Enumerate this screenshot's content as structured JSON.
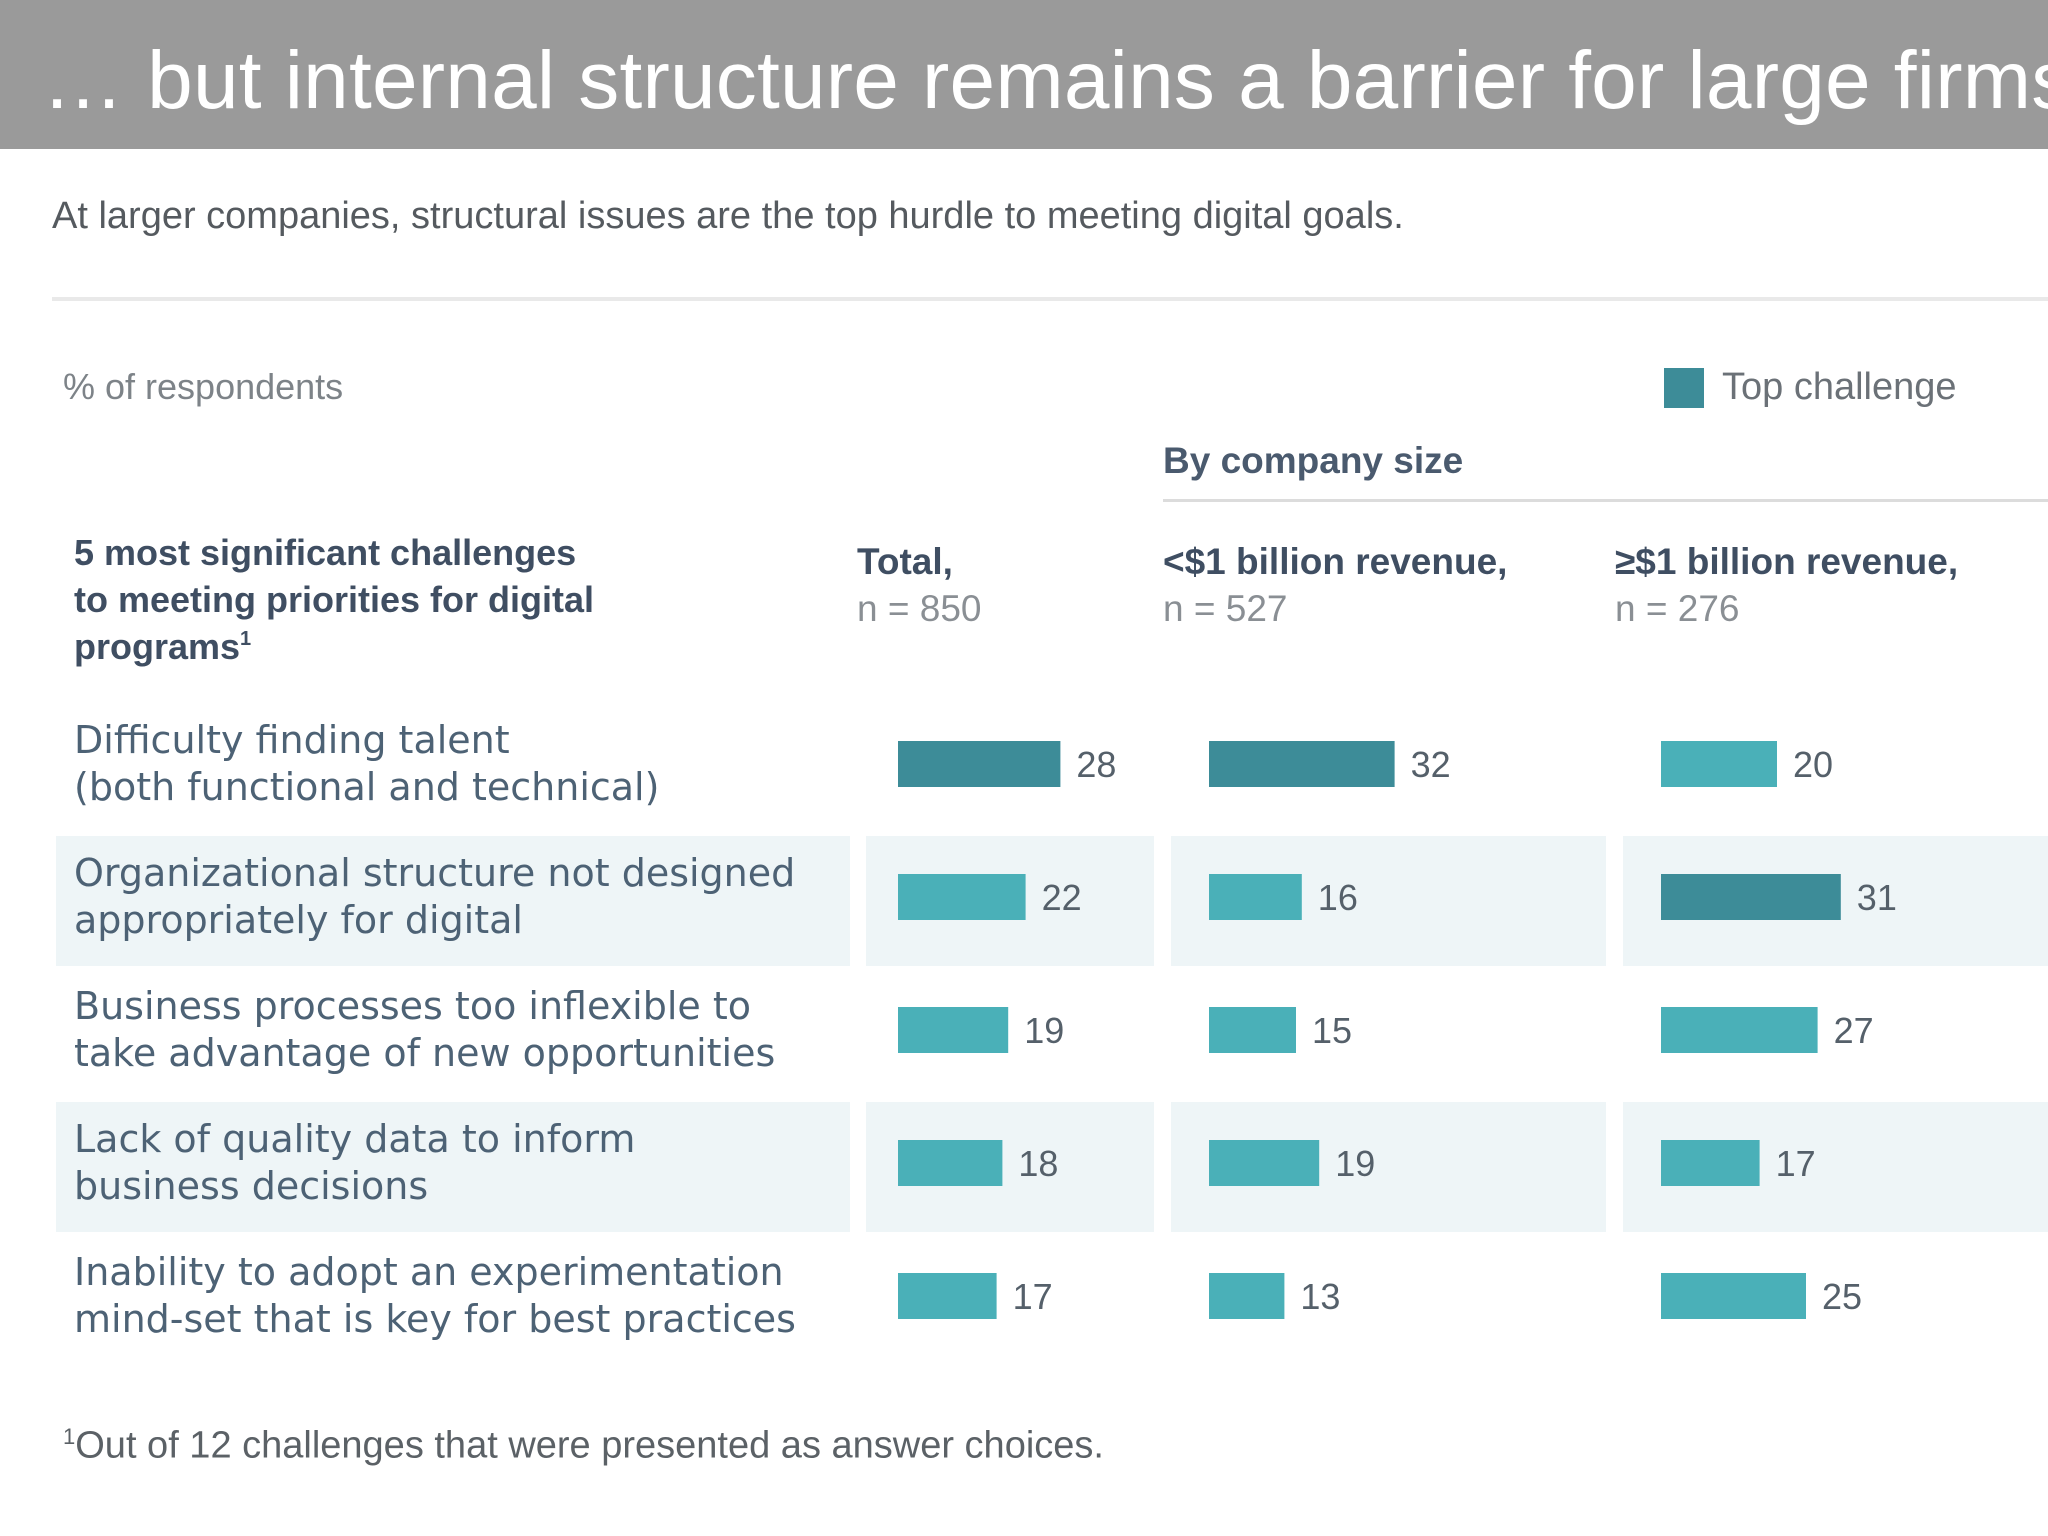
{
  "slide_title": "… but internal structure remains a barrier for large firms",
  "subtitle": "At larger companies, structural issues are the top hurdle to meeting digital goals.",
  "unit_label": "% of respondents",
  "legend": {
    "label": "Top challenge",
    "color": "#3d8c98"
  },
  "group_header": "By company size",
  "row_header": {
    "lines": [
      "5 most significant challenges",
      "to meeting priorities for digital",
      "programs"
    ],
    "footnote_marker": "1"
  },
  "columns": [
    {
      "title": "Total,",
      "n": "n = 850"
    },
    {
      "title": "<$1 billion revenue,",
      "n": "n = 527"
    },
    {
      "title": "≥$1 billion revenue,",
      "n": "n = 276"
    }
  ],
  "colors": {
    "top": "#3d8c98",
    "bar": "#4ab0b8",
    "band": "#eef5f7"
  },
  "chart_data": {
    "type": "bar",
    "orientation": "horizontal",
    "categories": [
      [
        "Difficulty finding talent",
        "(both functional and technical)"
      ],
      [
        "Organizational structure not designed",
        "appropriately for digital"
      ],
      [
        "Business processes too inflexible to",
        "take advantage of new opportunities"
      ],
      [
        "Lack of quality data to inform",
        "business decisions"
      ],
      [
        "Inability to adopt an experimentation",
        "mind-set that is key for best practices"
      ]
    ],
    "series": [
      {
        "name": "Total, n = 850",
        "values": [
          28,
          22,
          19,
          18,
          17
        ],
        "top": [
          true,
          false,
          false,
          false,
          false
        ]
      },
      {
        "name": "<$1 billion revenue, n = 527",
        "values": [
          32,
          16,
          15,
          19,
          13
        ],
        "top": [
          true,
          false,
          false,
          false,
          false
        ]
      },
      {
        "name": "≥$1 billion revenue, n = 276",
        "values": [
          20,
          31,
          27,
          17,
          25
        ],
        "top": [
          false,
          true,
          false,
          false,
          false
        ]
      }
    ]
  },
  "footnote": {
    "marker": "1",
    "text": "Out of 12 challenges that were presented as answer choices."
  }
}
